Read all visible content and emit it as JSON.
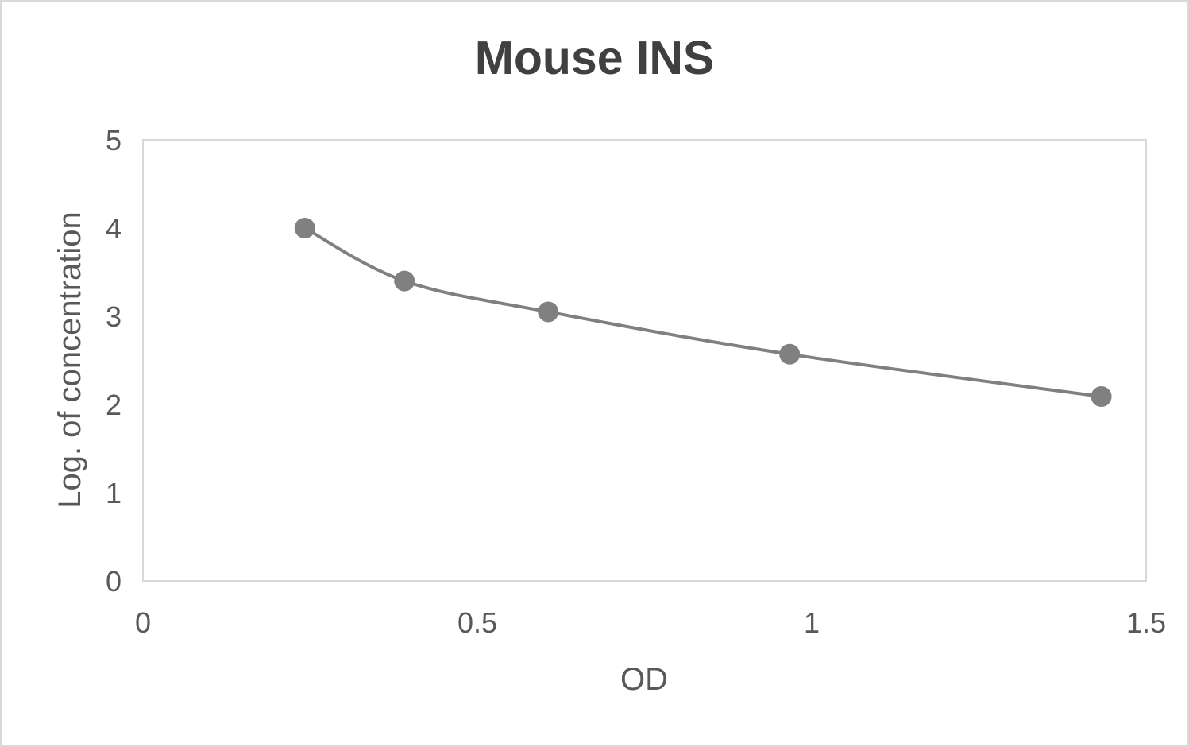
{
  "chart": {
    "title": "Mouse INS",
    "xlabel": "OD",
    "ylabel": "Log. of concentration",
    "colors": {
      "series": "#808080",
      "text": "#595959",
      "title": "#404040",
      "frame": "#d9d9d9"
    }
  },
  "chart_data": {
    "type": "scatter",
    "title": "Mouse INS",
    "xlabel": "OD",
    "ylabel": "Log. of concentration",
    "xlim": [
      0,
      1.5
    ],
    "ylim": [
      0,
      5
    ],
    "xticks": [
      "0",
      "0.5",
      "1",
      "1.5"
    ],
    "yticks": [
      "0",
      "1",
      "2",
      "3",
      "4",
      "5"
    ],
    "grid": false,
    "legend": null,
    "line": "smoothed",
    "series": [
      {
        "name": "Mouse INS",
        "x": [
          0.242,
          0.391,
          0.606,
          0.967,
          1.433
        ],
        "y": [
          4.0,
          3.4,
          3.05,
          2.57,
          2.09
        ]
      }
    ]
  }
}
